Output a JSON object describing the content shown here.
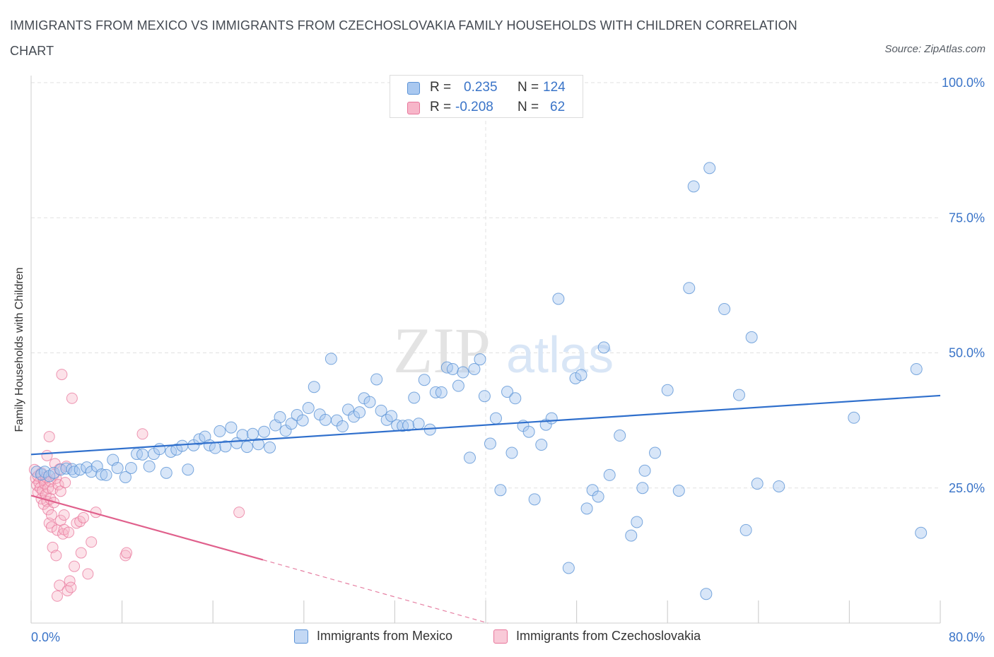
{
  "title": "IMMIGRANTS FROM MEXICO VS IMMIGRANTS FROM CZECHOSLOVAKIA FAMILY HOUSEHOLDS WITH CHILDREN CORRELATION CHART",
  "source": "Source: ZipAtlas.com",
  "watermark": {
    "zip": "ZIP",
    "atlas": "atlas"
  },
  "legend_top": {
    "rows": [
      {
        "r_label": "R =",
        "r_value": "0.235",
        "n_label": "N =",
        "n_value": "124"
      },
      {
        "r_label": "R =",
        "r_value": "-0.208",
        "n_label": "N =",
        "n_value": "62"
      }
    ]
  },
  "legend_bottom": {
    "series1": "Immigrants from Mexico",
    "series2": "Immigrants from Czechoslovakia"
  },
  "colors": {
    "series1_fill": "#a9c8f0",
    "series1_stroke": "#5b93d6",
    "series1_line": "#2f6fcc",
    "series2_fill": "#f7b6c9",
    "series2_stroke": "#e8769b",
    "series2_line": "#e0608c",
    "tick_text": "#3a74c8",
    "grid": "#e1e1e1"
  },
  "chart_data": {
    "type": "scatter",
    "title": "IMMIGRANTS FROM MEXICO VS IMMIGRANTS FROM CZECHOSLOVAKIA FAMILY HOUSEHOLDS WITH CHILDREN CORRELATION CHART",
    "xlabel": "",
    "ylabel": "Family Households with Children",
    "xlim": [
      0,
      80
    ],
    "ylim": [
      0,
      100
    ],
    "x_tick_labels": [
      "0.0%",
      "80.0%"
    ],
    "y_ticks": [
      25,
      50,
      75,
      100
    ],
    "y_tick_labels": [
      "25.0%",
      "50.0%",
      "75.0%",
      "100.0%"
    ],
    "grid": true,
    "legend_position": "top-center",
    "series": [
      {
        "name": "Immigrants from Mexico",
        "R": 0.235,
        "N": 124,
        "trend": {
          "x": [
            0,
            80
          ],
          "y": [
            31.2,
            42.1
          ]
        },
        "points": [
          [
            0.5,
            28.0
          ],
          [
            0.9,
            27.5
          ],
          [
            1.2,
            28.0
          ],
          [
            1.6,
            27.2
          ],
          [
            2.0,
            27.8
          ],
          [
            2.6,
            28.4
          ],
          [
            3.1,
            28.6
          ],
          [
            3.6,
            28.5
          ],
          [
            3.8,
            28.0
          ],
          [
            4.3,
            28.4
          ],
          [
            4.9,
            28.8
          ],
          [
            5.3,
            28.0
          ],
          [
            5.8,
            29.0
          ],
          [
            6.2,
            27.5
          ],
          [
            6.6,
            27.4
          ],
          [
            7.2,
            30.2
          ],
          [
            7.6,
            28.7
          ],
          [
            8.3,
            27.0
          ],
          [
            8.8,
            28.7
          ],
          [
            9.3,
            31.3
          ],
          [
            9.8,
            31.2
          ],
          [
            10.4,
            29.0
          ],
          [
            10.8,
            31.3
          ],
          [
            11.3,
            32.2
          ],
          [
            11.9,
            27.8
          ],
          [
            12.3,
            31.7
          ],
          [
            12.8,
            32.1
          ],
          [
            13.3,
            32.8
          ],
          [
            13.8,
            28.4
          ],
          [
            14.3,
            32.9
          ],
          [
            14.8,
            34.0
          ],
          [
            15.3,
            34.5
          ],
          [
            15.7,
            32.9
          ],
          [
            16.2,
            32.4
          ],
          [
            16.6,
            35.5
          ],
          [
            17.1,
            32.7
          ],
          [
            17.6,
            36.2
          ],
          [
            18.1,
            33.3
          ],
          [
            18.6,
            34.8
          ],
          [
            19.0,
            32.6
          ],
          [
            19.5,
            35.0
          ],
          [
            20.0,
            33.1
          ],
          [
            20.5,
            35.4
          ],
          [
            21.0,
            32.5
          ],
          [
            21.5,
            36.6
          ],
          [
            21.9,
            38.1
          ],
          [
            22.4,
            35.6
          ],
          [
            22.9,
            36.9
          ],
          [
            23.4,
            38.5
          ],
          [
            23.9,
            37.5
          ],
          [
            24.4,
            39.8
          ],
          [
            24.9,
            43.7
          ],
          [
            25.4,
            38.6
          ],
          [
            25.9,
            37.6
          ],
          [
            26.4,
            48.9
          ],
          [
            26.9,
            37.5
          ],
          [
            27.4,
            36.4
          ],
          [
            27.9,
            39.5
          ],
          [
            28.4,
            38.2
          ],
          [
            28.9,
            39.0
          ],
          [
            29.3,
            41.6
          ],
          [
            29.8,
            40.9
          ],
          [
            30.4,
            45.1
          ],
          [
            30.8,
            39.3
          ],
          [
            31.3,
            37.6
          ],
          [
            31.7,
            38.3
          ],
          [
            32.2,
            36.6
          ],
          [
            32.7,
            36.5
          ],
          [
            33.2,
            36.6
          ],
          [
            33.7,
            41.7
          ],
          [
            34.1,
            36.9
          ],
          [
            34.6,
            45.0
          ],
          [
            35.1,
            35.8
          ],
          [
            35.6,
            42.7
          ],
          [
            36.1,
            42.7
          ],
          [
            36.6,
            47.3
          ],
          [
            37.1,
            47.0
          ],
          [
            37.6,
            43.9
          ],
          [
            38.0,
            46.4
          ],
          [
            38.6,
            30.6
          ],
          [
            39.0,
            47.0
          ],
          [
            39.5,
            48.8
          ],
          [
            39.9,
            42.0
          ],
          [
            40.4,
            33.2
          ],
          [
            40.9,
            37.9
          ],
          [
            41.3,
            24.6
          ],
          [
            41.9,
            42.8
          ],
          [
            42.3,
            31.5
          ],
          [
            42.6,
            41.6
          ],
          [
            43.3,
            36.5
          ],
          [
            43.8,
            35.4
          ],
          [
            44.3,
            22.9
          ],
          [
            44.9,
            33.0
          ],
          [
            45.3,
            36.7
          ],
          [
            45.8,
            37.9
          ],
          [
            46.4,
            60.0
          ],
          [
            47.3,
            10.2
          ],
          [
            47.9,
            45.3
          ],
          [
            48.4,
            45.9
          ],
          [
            48.9,
            21.2
          ],
          [
            49.4,
            24.6
          ],
          [
            49.9,
            23.4
          ],
          [
            50.4,
            51.0
          ],
          [
            50.9,
            27.4
          ],
          [
            51.8,
            34.7
          ],
          [
            52.8,
            16.2
          ],
          [
            53.3,
            18.7
          ],
          [
            53.8,
            25.0
          ],
          [
            54.0,
            28.2
          ],
          [
            54.9,
            31.5
          ],
          [
            56.0,
            43.1
          ],
          [
            57.0,
            24.5
          ],
          [
            57.9,
            62.0
          ],
          [
            58.3,
            80.8
          ],
          [
            59.4,
            5.4
          ],
          [
            59.7,
            84.2
          ],
          [
            61.0,
            58.1
          ],
          [
            62.3,
            42.2
          ],
          [
            62.9,
            17.2
          ],
          [
            63.4,
            52.9
          ],
          [
            63.9,
            25.8
          ],
          [
            65.8,
            25.3
          ],
          [
            72.4,
            38.0
          ],
          [
            78.3,
            16.7
          ],
          [
            77.9,
            47.0
          ]
        ]
      },
      {
        "name": "Immigrants from Czechoslovakia",
        "R": -0.208,
        "N": 62,
        "trend": {
          "x": [
            0,
            20.4
          ],
          "y": [
            23.6,
            11.7
          ]
        },
        "trend_dashed": {
          "x": [
            20.4,
            40.2
          ],
          "y": [
            11.7,
            0
          ]
        },
        "points": [
          [
            0.3,
            28.4
          ],
          [
            0.4,
            26.8
          ],
          [
            0.5,
            25.5
          ],
          [
            0.6,
            27.2
          ],
          [
            0.6,
            24.2
          ],
          [
            0.7,
            26.0
          ],
          [
            0.8,
            25.0
          ],
          [
            0.9,
            23.0
          ],
          [
            0.9,
            27.8
          ],
          [
            1.0,
            24.5
          ],
          [
            1.1,
            26.5
          ],
          [
            1.1,
            22.0
          ],
          [
            1.2,
            25.8
          ],
          [
            1.3,
            23.8
          ],
          [
            1.3,
            27.0
          ],
          [
            1.4,
            31.0
          ],
          [
            1.4,
            22.5
          ],
          [
            1.5,
            21.0
          ],
          [
            1.5,
            25.0
          ],
          [
            1.6,
            34.5
          ],
          [
            1.6,
            18.5
          ],
          [
            1.7,
            26.2
          ],
          [
            1.7,
            23.0
          ],
          [
            1.8,
            20.0
          ],
          [
            1.8,
            17.8
          ],
          [
            1.9,
            24.8
          ],
          [
            1.9,
            14.0
          ],
          [
            2.0,
            27.5
          ],
          [
            2.0,
            22.3
          ],
          [
            2.1,
            29.5
          ],
          [
            2.2,
            26.8
          ],
          [
            2.2,
            12.5
          ],
          [
            2.3,
            5.0
          ],
          [
            2.3,
            17.2
          ],
          [
            2.4,
            25.6
          ],
          [
            2.5,
            28.5
          ],
          [
            2.5,
            7.0
          ],
          [
            2.6,
            24.4
          ],
          [
            2.6,
            19.0
          ],
          [
            2.7,
            46.0
          ],
          [
            2.8,
            16.5
          ],
          [
            2.9,
            20.0
          ],
          [
            2.9,
            17.3
          ],
          [
            3.0,
            26.0
          ],
          [
            3.1,
            29.0
          ],
          [
            3.2,
            6.0
          ],
          [
            3.3,
            16.8
          ],
          [
            3.4,
            7.8
          ],
          [
            3.5,
            6.6
          ],
          [
            3.6,
            41.6
          ],
          [
            3.8,
            10.5
          ],
          [
            4.0,
            18.5
          ],
          [
            4.3,
            18.8
          ],
          [
            4.4,
            13.0
          ],
          [
            4.6,
            19.5
          ],
          [
            5.0,
            9.1
          ],
          [
            5.3,
            15.0
          ],
          [
            5.7,
            20.5
          ],
          [
            8.3,
            12.5
          ],
          [
            8.4,
            13.0
          ],
          [
            9.8,
            35.0
          ],
          [
            18.3,
            20.5
          ]
        ]
      }
    ]
  }
}
